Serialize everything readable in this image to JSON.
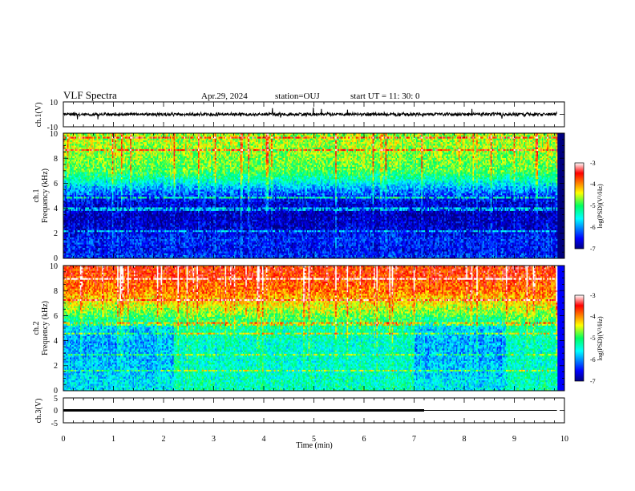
{
  "header": {
    "title": "VLF Spectra",
    "date": "Apr.29, 2024",
    "station": "station=OUJ",
    "start_ut": "start  UT =   11: 30: 0"
  },
  "chart_data": [
    {
      "id": "ch1-waveform",
      "type": "line",
      "ylabel": "ch.1(V)",
      "ylim": [
        -10,
        10
      ],
      "yticks": [
        "10",
        "-10"
      ],
      "xlim": [
        0,
        10
      ],
      "signal_end_min": 9.85,
      "baseline": 0,
      "noise_amplitude": 1.6,
      "spike_amplitude": 5
    },
    {
      "id": "ch1-spectrogram",
      "type": "heatmap",
      "ylabel": "ch.1\nFrequency (kHz)",
      "ylim": [
        0,
        10
      ],
      "yticks": [
        "0",
        "2",
        "4",
        "6",
        "8",
        "10"
      ],
      "xlim": [
        0,
        10
      ],
      "colorbar": {
        "label": "log(PSD)(V²/Hz)",
        "range": [
          -7,
          -3
        ],
        "ticks": [
          "-3",
          "-4",
          "-5",
          "-6",
          "-7"
        ]
      },
      "intensity_profile": [
        {
          "f": 0.0,
          "v": -6.3
        },
        {
          "f": 0.6,
          "v": -6.5
        },
        {
          "f": 1.5,
          "v": -6.4
        },
        {
          "f": 2.5,
          "v": -6.7
        },
        {
          "f": 3.5,
          "v": -6.8
        },
        {
          "f": 4.5,
          "v": -6.6
        },
        {
          "f": 5.5,
          "v": -6.0
        },
        {
          "f": 6.2,
          "v": -5.4
        },
        {
          "f": 7.0,
          "v": -4.9
        },
        {
          "f": 8.0,
          "v": -4.7
        },
        {
          "f": 9.0,
          "v": -4.6
        },
        {
          "f": 10.0,
          "v": -4.6
        }
      ]
    },
    {
      "id": "ch2-spectrogram",
      "type": "heatmap",
      "ylabel": "ch.2\nFrequency (kHz)",
      "ylim": [
        0,
        10
      ],
      "yticks": [
        "0",
        "2",
        "4",
        "6",
        "8",
        "10"
      ],
      "xlim": [
        0,
        10
      ],
      "colorbar": {
        "label": "log(PSD)(V²/Hz)",
        "range": [
          -7,
          -3
        ],
        "ticks": [
          "-3",
          "-4",
          "-5",
          "-6",
          "-7"
        ]
      },
      "quiet_intervals_min": [
        [
          0,
          2.2
        ],
        [
          7.0,
          8.85
        ]
      ],
      "intensity_profile_quiet": [
        {
          "f": 0.0,
          "v": -5.6
        },
        {
          "f": 2.0,
          "v": -5.8
        },
        {
          "f": 4.0,
          "v": -5.9
        },
        {
          "f": 5.0,
          "v": -5.7
        },
        {
          "f": 6.0,
          "v": -4.9
        },
        {
          "f": 7.0,
          "v": -4.4
        },
        {
          "f": 8.0,
          "v": -3.9
        },
        {
          "f": 9.0,
          "v": -3.7
        },
        {
          "f": 10.0,
          "v": -3.6
        }
      ],
      "intensity_profile_active": [
        {
          "f": 0.0,
          "v": -5.3
        },
        {
          "f": 2.0,
          "v": -5.4
        },
        {
          "f": 4.0,
          "v": -5.4
        },
        {
          "f": 5.0,
          "v": -5.2
        },
        {
          "f": 6.0,
          "v": -4.8
        },
        {
          "f": 7.0,
          "v": -4.3
        },
        {
          "f": 8.0,
          "v": -3.9
        },
        {
          "f": 9.0,
          "v": -3.7
        },
        {
          "f": 10.0,
          "v": -3.6
        }
      ]
    },
    {
      "id": "ch3-waveform",
      "type": "line",
      "ylabel": "ch.3(V)",
      "ylim": [
        -5,
        5
      ],
      "yticks": [
        "5",
        "0",
        "-5"
      ],
      "xlim": [
        0,
        10
      ],
      "xlabel": "Time (min)",
      "xticks": [
        "0",
        "1",
        "2",
        "3",
        "4",
        "5",
        "6",
        "7",
        "8",
        "9",
        "10"
      ],
      "signal_end_min": 9.85,
      "thick_line_end_min": 7.2,
      "level": 0
    }
  ]
}
